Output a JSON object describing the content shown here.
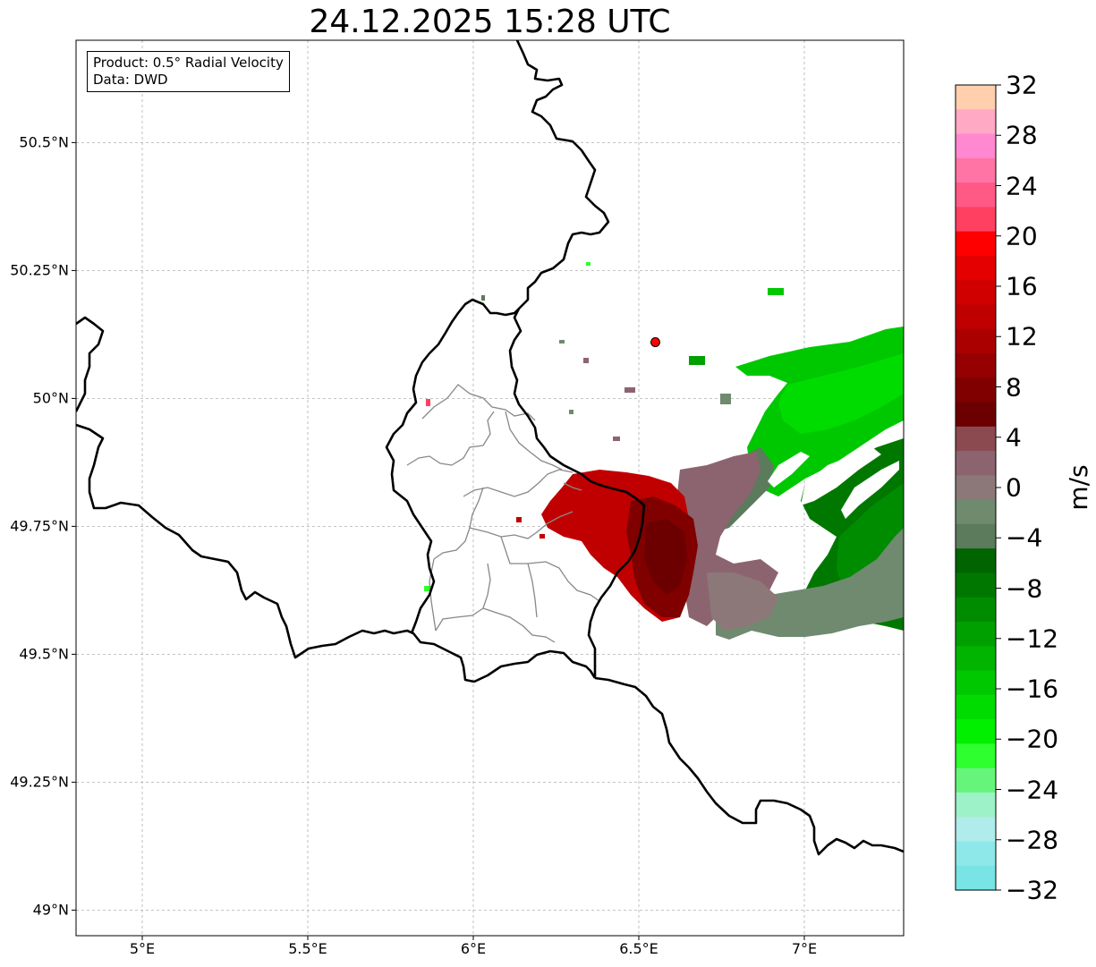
{
  "title": "24.12.2025 15:28 UTC",
  "info": {
    "product": "Product: 0.5° Radial Velocity",
    "source": "Data: DWD"
  },
  "map": {
    "lon_range": [
      4.8,
      7.3
    ],
    "lat_range": [
      48.95,
      50.7
    ],
    "lon_ticks": [
      {
        "value": 5.0,
        "label": "5°E"
      },
      {
        "value": 5.5,
        "label": "5.5°E"
      },
      {
        "value": 6.0,
        "label": "6°E"
      },
      {
        "value": 6.5,
        "label": "6.5°E"
      },
      {
        "value": 7.0,
        "label": "7°E"
      }
    ],
    "lat_ticks": [
      {
        "value": 50.5,
        "label": "50.5°N"
      },
      {
        "value": 50.25,
        "label": "50.25°N"
      },
      {
        "value": 50.0,
        "label": "50°N"
      },
      {
        "value": 49.75,
        "label": "49.75°N"
      },
      {
        "value": 49.5,
        "label": "49.5°N"
      },
      {
        "value": 49.25,
        "label": "49.25°N"
      },
      {
        "value": 49.0,
        "label": "49°N"
      }
    ],
    "grid": true,
    "radar_site": {
      "lon": 6.55,
      "lat": 50.11,
      "color": "#ff0000"
    }
  },
  "colorbar": {
    "unit": "m/s",
    "min": -32,
    "max": 32,
    "ticks": [
      {
        "value": 32,
        "label": "32"
      },
      {
        "value": 28,
        "label": "28"
      },
      {
        "value": 24,
        "label": "24"
      },
      {
        "value": 20,
        "label": "20"
      },
      {
        "value": 16,
        "label": "16"
      },
      {
        "value": 12,
        "label": "12"
      },
      {
        "value": 8,
        "label": "8"
      },
      {
        "value": 4,
        "label": "4"
      },
      {
        "value": 0,
        "label": "0"
      },
      {
        "value": -4,
        "label": "−4"
      },
      {
        "value": -8,
        "label": "−8"
      },
      {
        "value": -12,
        "label": "−12"
      },
      {
        "value": -16,
        "label": "−16"
      },
      {
        "value": -20,
        "label": "−20"
      },
      {
        "value": -24,
        "label": "−24"
      },
      {
        "value": -28,
        "label": "−28"
      },
      {
        "value": -32,
        "label": "−32"
      }
    ],
    "colors_top_to_bottom": [
      "#ffcfae",
      "#ffa9c4",
      "#ff88d0",
      "#ff74a4",
      "#ff5a86",
      "#ff4060",
      "#ff0000",
      "#e50000",
      "#d00000",
      "#c00000",
      "#aa0000",
      "#960000",
      "#800000",
      "#6c0000",
      "#8a4a50",
      "#8c6470",
      "#8c7878",
      "#6f8a6f",
      "#5c7a5c",
      "#006400",
      "#007800",
      "#008c00",
      "#00a000",
      "#00b400",
      "#00c800",
      "#00dc00",
      "#00f000",
      "#2eff2e",
      "#66f57a",
      "#9ef2c8",
      "#b0ecec",
      "#8ee8ea",
      "#78e4e6"
    ]
  }
}
